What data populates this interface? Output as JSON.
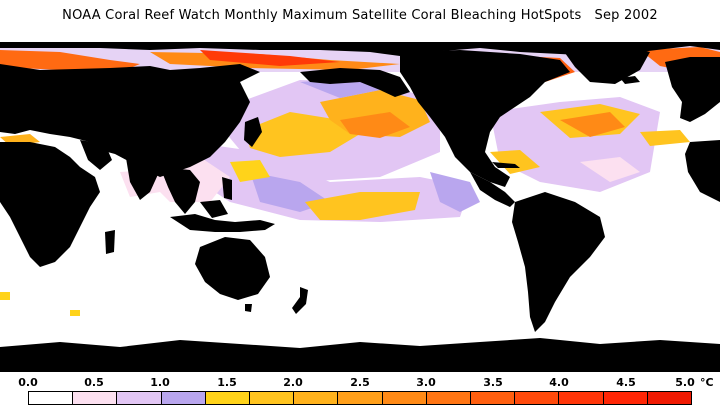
{
  "title": "NOAA Coral Reef Watch Monthly Maximum Satellite Coral Bleaching HotSpots",
  "date": "Sep 2002",
  "legend": {
    "tick_labels": [
      "0.0",
      "0.5",
      "1.0",
      "1.5",
      "2.0",
      "2.5",
      "3.0",
      "3.5",
      "4.0",
      "4.5",
      "5.0"
    ],
    "unit": "°C",
    "colors": [
      "#ffffff",
      "#fce0f0",
      "#e2c6f4",
      "#b9a6ee",
      "#ffd31a",
      "#ffc41f",
      "#ffb21c",
      "#ff9f1a",
      "#ff8a16",
      "#ff7513",
      "#ff5f0f",
      "#ff4a0b",
      "#ff3508",
      "#ff2605",
      "#f01a02"
    ]
  },
  "map": {
    "land_color": "#000000",
    "ocean_color": "#ffffff"
  }
}
